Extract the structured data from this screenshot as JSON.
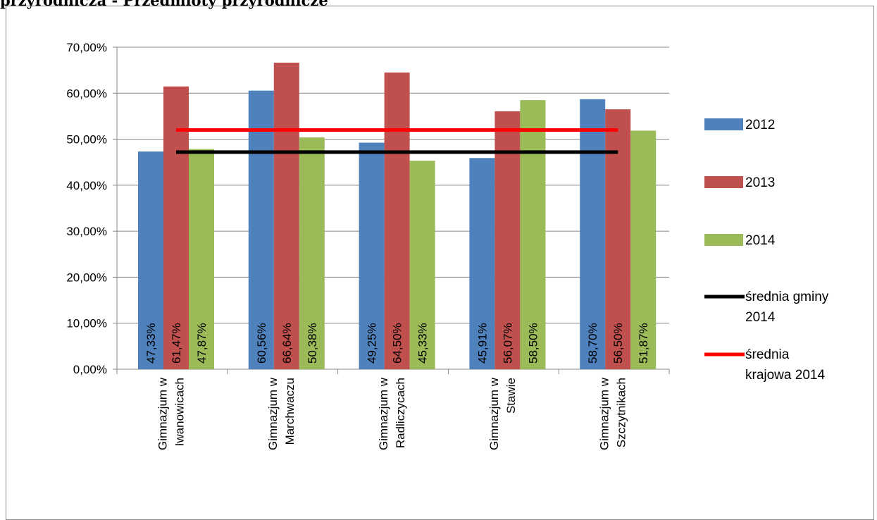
{
  "page": {
    "heading": "przyrodnicza - Przedmioty przyrodnicze"
  },
  "chart_data": {
    "type": "bar",
    "title": "",
    "xlabel": "",
    "ylabel": "",
    "ylim": [
      0,
      70
    ],
    "yticks": [
      "0,00%",
      "10,00%",
      "20,00%",
      "30,00%",
      "40,00%",
      "50,00%",
      "60,00%",
      "70,00%"
    ],
    "grid": true,
    "legend_position": "right",
    "categories": [
      [
        "Gimnazjum w",
        "Iwanowicach"
      ],
      [
        "Gimnazjum w",
        "Marchwaczu"
      ],
      [
        "Gimnazjum w",
        "Radliczycach"
      ],
      [
        "Gimnazjum w",
        "Stawie"
      ],
      [
        "Gimnazjum w",
        "Szczytnikach"
      ]
    ],
    "series": [
      {
        "name": "2012",
        "color": "#4f81bd",
        "values": [
          47.33,
          60.56,
          49.25,
          45.91,
          58.7
        ],
        "labels": [
          "47,33%",
          "60,56%",
          "49,25%",
          "45,91%",
          "58,70%"
        ]
      },
      {
        "name": "2013",
        "color": "#c0504d",
        "values": [
          61.47,
          66.64,
          64.5,
          56.07,
          56.5
        ],
        "labels": [
          "61,47%",
          "66,64%",
          "64,50%",
          "56,07%",
          "56,50%"
        ]
      },
      {
        "name": "2014",
        "color": "#9bbb59",
        "values": [
          47.87,
          50.38,
          45.33,
          58.5,
          51.87
        ],
        "labels": [
          "47,87%",
          "50,38%",
          "45,33%",
          "58,50%",
          "51,87%"
        ]
      }
    ],
    "lines": [
      {
        "name": [
          "średnia gminy",
          "2014"
        ],
        "color": "#000000",
        "value": 47.2
      },
      {
        "name": [
          "średnia",
          "krajowa 2014"
        ],
        "color": "#ff0000",
        "value": 52.0
      }
    ]
  }
}
